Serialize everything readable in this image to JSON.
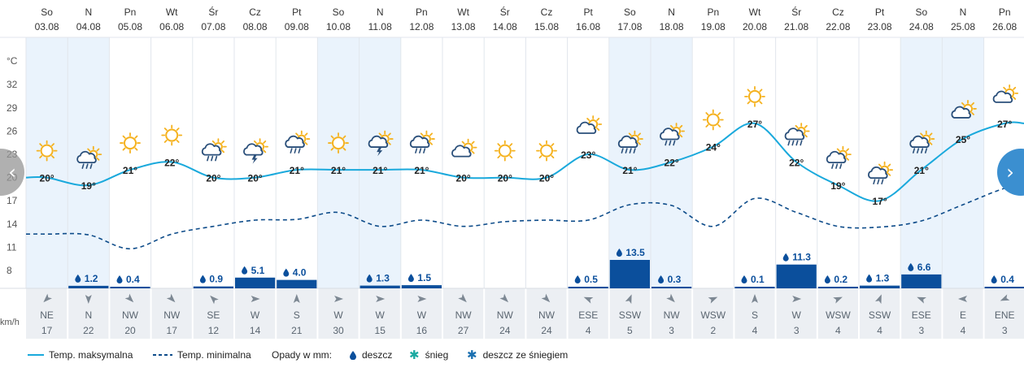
{
  "chart_data": {
    "type": "line",
    "temp_axis": {
      "unit": "°C",
      "ticks": [
        32,
        29,
        26,
        23,
        20,
        17,
        14,
        11,
        8
      ]
    },
    "wind_unit": "km/h",
    "days": [
      {
        "dow": "So",
        "date": "03.08",
        "weekend": true,
        "icon": "sun",
        "tmax": 20,
        "tmin": 12.7,
        "precip": null,
        "wind_dir": "NE",
        "wind_deg": 45,
        "wind_speed": 17
      },
      {
        "dow": "N",
        "date": "04.08",
        "weekend": true,
        "icon": "sun-cloud-rain",
        "tmax": 19,
        "tmin": 12.6,
        "precip": 1.2,
        "wind_dir": "N",
        "wind_deg": 0,
        "wind_speed": 22
      },
      {
        "dow": "Pn",
        "date": "05.08",
        "weekend": false,
        "icon": "sun",
        "tmax": 21,
        "tmin": 10.8,
        "precip": 0.4,
        "wind_dir": "NW",
        "wind_deg": 315,
        "wind_speed": 20
      },
      {
        "dow": "Wt",
        "date": "06.08",
        "weekend": false,
        "icon": "sun",
        "tmax": 22,
        "tmin": 12.7,
        "precip": null,
        "wind_dir": "NW",
        "wind_deg": 315,
        "wind_speed": 17
      },
      {
        "dow": "Śr",
        "date": "07.08",
        "weekend": false,
        "icon": "sun-cloud-rain",
        "tmax": 20,
        "tmin": 13.7,
        "precip": 0.9,
        "wind_dir": "SE",
        "wind_deg": 135,
        "wind_speed": 12
      },
      {
        "dow": "Cz",
        "date": "08.08",
        "weekend": false,
        "icon": "sun-cloud-storm",
        "tmax": 20,
        "tmin": 14.5,
        "precip": 5.1,
        "wind_dir": "W",
        "wind_deg": 270,
        "wind_speed": 14
      },
      {
        "dow": "Pt",
        "date": "09.08",
        "weekend": false,
        "icon": "sun-cloud-rain",
        "tmax": 21,
        "tmin": 14.6,
        "precip": 4.0,
        "wind_dir": "S",
        "wind_deg": 180,
        "wind_speed": 21
      },
      {
        "dow": "So",
        "date": "10.08",
        "weekend": true,
        "icon": "sun",
        "tmax": 21,
        "tmin": 15.5,
        "precip": null,
        "wind_dir": "W",
        "wind_deg": 270,
        "wind_speed": 30
      },
      {
        "dow": "N",
        "date": "11.08",
        "weekend": true,
        "icon": "sun-cloud-storm",
        "tmax": 21,
        "tmin": 13.7,
        "precip": 1.3,
        "wind_dir": "W",
        "wind_deg": 270,
        "wind_speed": 15
      },
      {
        "dow": "Pn",
        "date": "12.08",
        "weekend": false,
        "icon": "sun-cloud-rain",
        "tmax": 21,
        "tmin": 14.5,
        "precip": 1.5,
        "wind_dir": "W",
        "wind_deg": 270,
        "wind_speed": 16
      },
      {
        "dow": "Wt",
        "date": "13.08",
        "weekend": false,
        "icon": "sun-cloud",
        "tmax": 20,
        "tmin": 13.7,
        "precip": null,
        "wind_dir": "NW",
        "wind_deg": 315,
        "wind_speed": 27
      },
      {
        "dow": "Śr",
        "date": "14.08",
        "weekend": false,
        "icon": "sun",
        "tmax": 20,
        "tmin": 14.3,
        "precip": null,
        "wind_dir": "NW",
        "wind_deg": 315,
        "wind_speed": 24
      },
      {
        "dow": "Cz",
        "date": "15.08",
        "weekend": false,
        "icon": "sun",
        "tmax": 20,
        "tmin": 14.5,
        "precip": null,
        "wind_dir": "NW",
        "wind_deg": 315,
        "wind_speed": 24
      },
      {
        "dow": "Pt",
        "date": "16.08",
        "weekend": false,
        "icon": "sun-cloud",
        "tmax": 23,
        "tmin": 14.5,
        "precip": 0.5,
        "wind_dir": "ESE",
        "wind_deg": 112,
        "wind_speed": 4
      },
      {
        "dow": "So",
        "date": "17.08",
        "weekend": true,
        "icon": "sun-cloud-rain-heavy",
        "tmax": 21,
        "tmin": 16.5,
        "precip": 13.5,
        "wind_dir": "SSW",
        "wind_deg": 202,
        "wind_speed": 5
      },
      {
        "dow": "N",
        "date": "18.08",
        "weekend": true,
        "icon": "sun-cloud-rain",
        "tmax": 22,
        "tmin": 16.4,
        "precip": 0.3,
        "wind_dir": "NW",
        "wind_deg": 315,
        "wind_speed": 3
      },
      {
        "dow": "Pn",
        "date": "19.08",
        "weekend": false,
        "icon": "sun",
        "tmax": 24,
        "tmin": 13.7,
        "precip": null,
        "wind_dir": "WSW",
        "wind_deg": 247,
        "wind_speed": 2
      },
      {
        "dow": "Wt",
        "date": "20.08",
        "weekend": false,
        "icon": "sun",
        "tmax": 27,
        "tmin": 17.3,
        "precip": 0.1,
        "wind_dir": "S",
        "wind_deg": 180,
        "wind_speed": 4
      },
      {
        "dow": "Śr",
        "date": "21.08",
        "weekend": false,
        "icon": "sun-cloud-rain-heavy",
        "tmax": 22,
        "tmin": 15.5,
        "precip": 11.3,
        "wind_dir": "W",
        "wind_deg": 270,
        "wind_speed": 3
      },
      {
        "dow": "Cz",
        "date": "22.08",
        "weekend": false,
        "icon": "sun-cloud-rain",
        "tmax": 19,
        "tmin": 13.7,
        "precip": 0.2,
        "wind_dir": "WSW",
        "wind_deg": 247,
        "wind_speed": 4
      },
      {
        "dow": "Pt",
        "date": "23.08",
        "weekend": false,
        "icon": "sun-cloud-rain",
        "tmax": 17,
        "tmin": 13.6,
        "precip": 1.3,
        "wind_dir": "SSW",
        "wind_deg": 202,
        "wind_speed": 4
      },
      {
        "dow": "So",
        "date": "24.08",
        "weekend": true,
        "icon": "sun-cloud-rain-heavy",
        "tmax": 21,
        "tmin": 14.4,
        "precip": 6.6,
        "wind_dir": "ESE",
        "wind_deg": 112,
        "wind_speed": 3
      },
      {
        "dow": "N",
        "date": "25.08",
        "weekend": true,
        "icon": "sun-cloud",
        "tmax": 25,
        "tmin": 16.5,
        "precip": null,
        "wind_dir": "E",
        "wind_deg": 90,
        "wind_speed": 4
      },
      {
        "dow": "Pn",
        "date": "26.08",
        "weekend": false,
        "icon": "sun-cloud",
        "tmax": 27,
        "tmin": 18.6,
        "precip": 0.4,
        "wind_dir": "ENE",
        "wind_deg": 67,
        "wind_speed": 3
      }
    ],
    "colors": {
      "tmax": "#1aa9dc",
      "tmin": "#0e4c8a",
      "precip": "#0b4f9c",
      "weekend": "#eaf3fc",
      "sun": "#f5b21f"
    }
  },
  "legend": {
    "tmax": "Temp. maksymalna",
    "tmin": "Temp. minimalna",
    "precip_title": "Opady w mm:",
    "rain": "deszcz",
    "snow": "śnieg",
    "rain_snow": "deszcz ze śniegiem"
  },
  "nav": {
    "prev_icon": "chevron-left-icon",
    "next_icon": "chevron-right-icon"
  }
}
